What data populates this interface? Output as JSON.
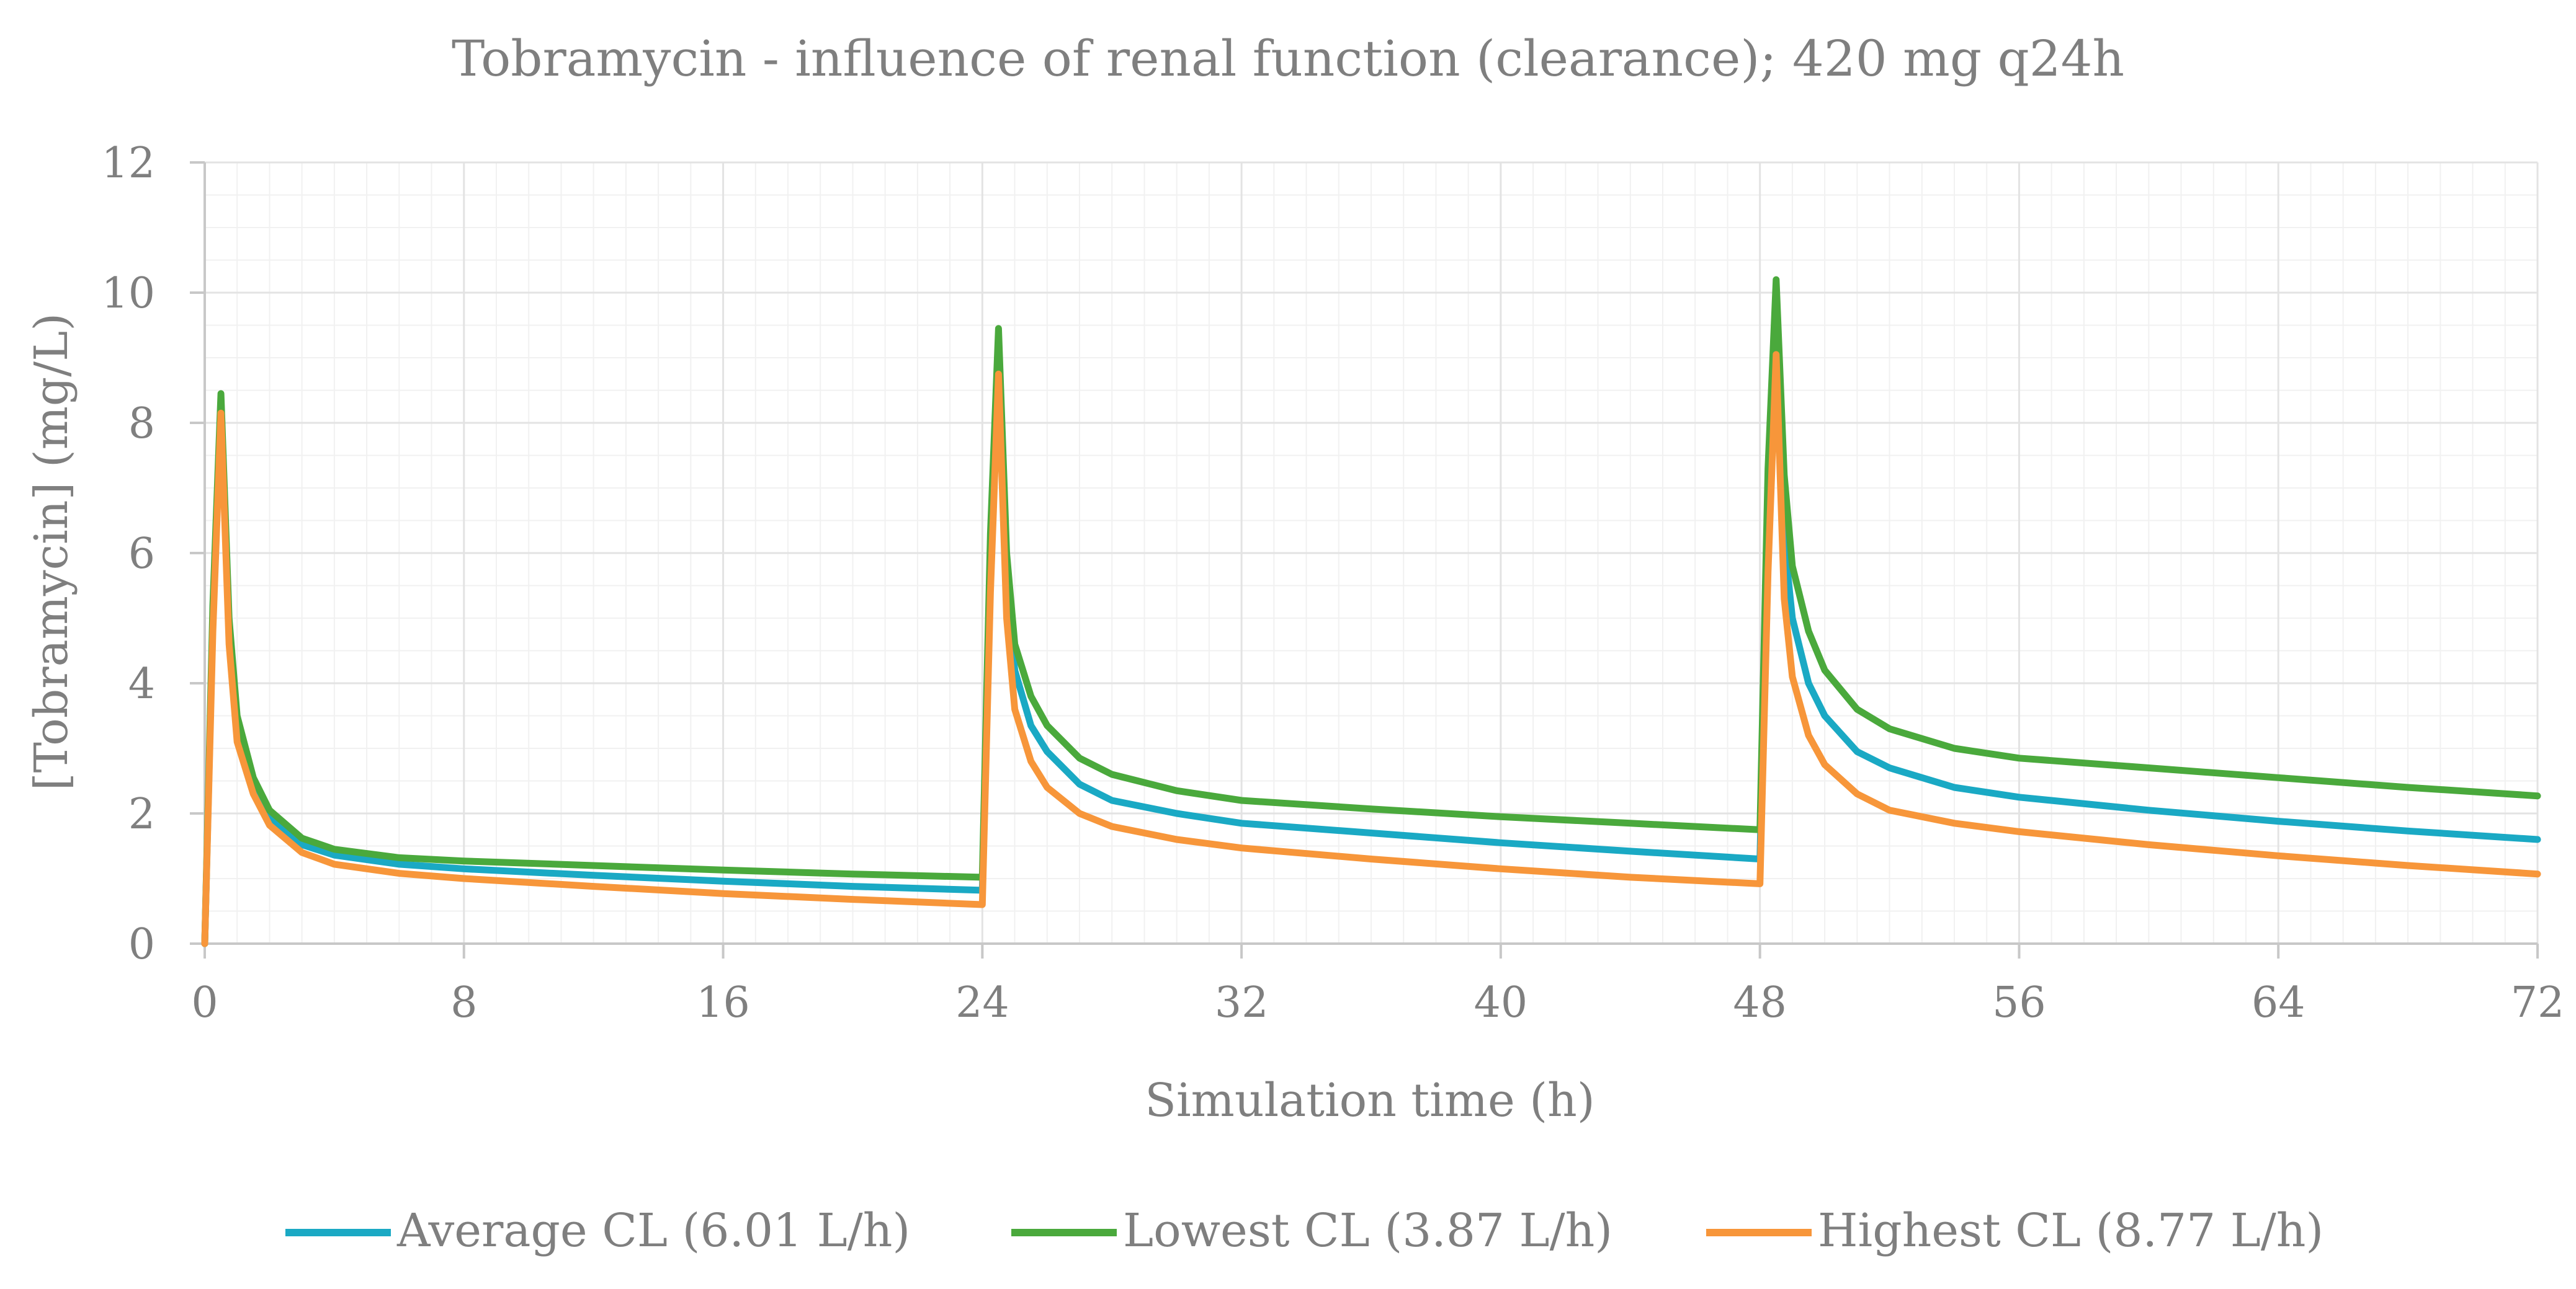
{
  "chart_data": {
    "type": "line",
    "title": "Tobramycin - influence of renal function (clearance); 420 mg q24h",
    "xlabel": "Simulation time (h)",
    "ylabel": "[Tobramycin] (mg/L)",
    "xlim": [
      0,
      72
    ],
    "ylim": [
      0,
      12
    ],
    "xticks": [
      0,
      8,
      16,
      24,
      32,
      40,
      48,
      56,
      64,
      72
    ],
    "yticks": [
      0,
      2,
      4,
      6,
      8,
      10,
      12
    ],
    "minor_x_step": 1,
    "minor_y_step": 0.5,
    "grid": true,
    "legend_position": "bottom",
    "series": [
      {
        "name": "Average CL (6.01 L/h)",
        "color": "#1aa9c4",
        "x": [
          0,
          0.25,
          0.5,
          0.75,
          1,
          1.5,
          2,
          3,
          4,
          6,
          8,
          12,
          16,
          20,
          23.99,
          24,
          24.25,
          24.5,
          24.75,
          25,
          25.5,
          26,
          27,
          28,
          30,
          32,
          36,
          40,
          44,
          47.99,
          48,
          48.25,
          48.5,
          48.75,
          49,
          49.5,
          50,
          51,
          52,
          54,
          56,
          60,
          64,
          68,
          72
        ],
        "y": [
          0,
          5.0,
          8.25,
          4.8,
          3.3,
          2.45,
          1.95,
          1.52,
          1.36,
          1.22,
          1.15,
          1.05,
          0.96,
          0.88,
          0.82,
          0.82,
          5.9,
          9.0,
          5.6,
          4.2,
          3.35,
          2.95,
          2.45,
          2.2,
          2.0,
          1.85,
          1.7,
          1.55,
          1.42,
          1.3,
          1.3,
          6.6,
          9.4,
          6.2,
          5.0,
          4.0,
          3.5,
          2.95,
          2.7,
          2.4,
          2.25,
          2.05,
          1.88,
          1.73,
          1.6
        ]
      },
      {
        "name": "Lowest CL (3.87 L/h)",
        "color": "#4aa93c",
        "x": [
          0,
          0.25,
          0.5,
          0.75,
          1,
          1.5,
          2,
          3,
          4,
          6,
          8,
          12,
          16,
          20,
          23.99,
          24,
          24.25,
          24.5,
          24.75,
          25,
          25.5,
          26,
          27,
          28,
          30,
          32,
          36,
          40,
          44,
          47.99,
          48,
          48.25,
          48.5,
          48.75,
          49,
          49.5,
          50,
          51,
          52,
          54,
          56,
          60,
          64,
          68,
          72
        ],
        "y": [
          0,
          5.2,
          8.45,
          5.0,
          3.5,
          2.55,
          2.05,
          1.62,
          1.45,
          1.32,
          1.27,
          1.2,
          1.13,
          1.07,
          1.02,
          1.02,
          6.3,
          9.45,
          6.0,
          4.6,
          3.8,
          3.35,
          2.85,
          2.6,
          2.35,
          2.2,
          2.07,
          1.95,
          1.85,
          1.75,
          1.75,
          7.3,
          10.2,
          7.2,
          5.8,
          4.8,
          4.2,
          3.6,
          3.3,
          3.0,
          2.85,
          2.7,
          2.55,
          2.4,
          2.27
        ]
      },
      {
        "name": "Highest CL (8.77 L/h)",
        "color": "#f7963a",
        "x": [
          0,
          0.25,
          0.5,
          0.75,
          1,
          1.5,
          2,
          3,
          4,
          6,
          8,
          12,
          16,
          20,
          23.99,
          24,
          24.25,
          24.5,
          24.75,
          25,
          25.5,
          26,
          27,
          28,
          30,
          32,
          36,
          40,
          44,
          47.99,
          48,
          48.25,
          48.5,
          48.75,
          49,
          49.5,
          50,
          51,
          52,
          54,
          56,
          60,
          64,
          68,
          72
        ],
        "y": [
          0,
          4.8,
          8.15,
          4.6,
          3.1,
          2.3,
          1.82,
          1.4,
          1.22,
          1.08,
          1.0,
          0.88,
          0.77,
          0.68,
          0.6,
          0.6,
          5.4,
          8.75,
          5.0,
          3.6,
          2.8,
          2.4,
          2.0,
          1.8,
          1.6,
          1.47,
          1.3,
          1.15,
          1.02,
          0.92,
          0.92,
          5.7,
          9.05,
          5.3,
          4.1,
          3.2,
          2.75,
          2.3,
          2.05,
          1.85,
          1.72,
          1.52,
          1.35,
          1.2,
          1.07
        ]
      }
    ]
  }
}
